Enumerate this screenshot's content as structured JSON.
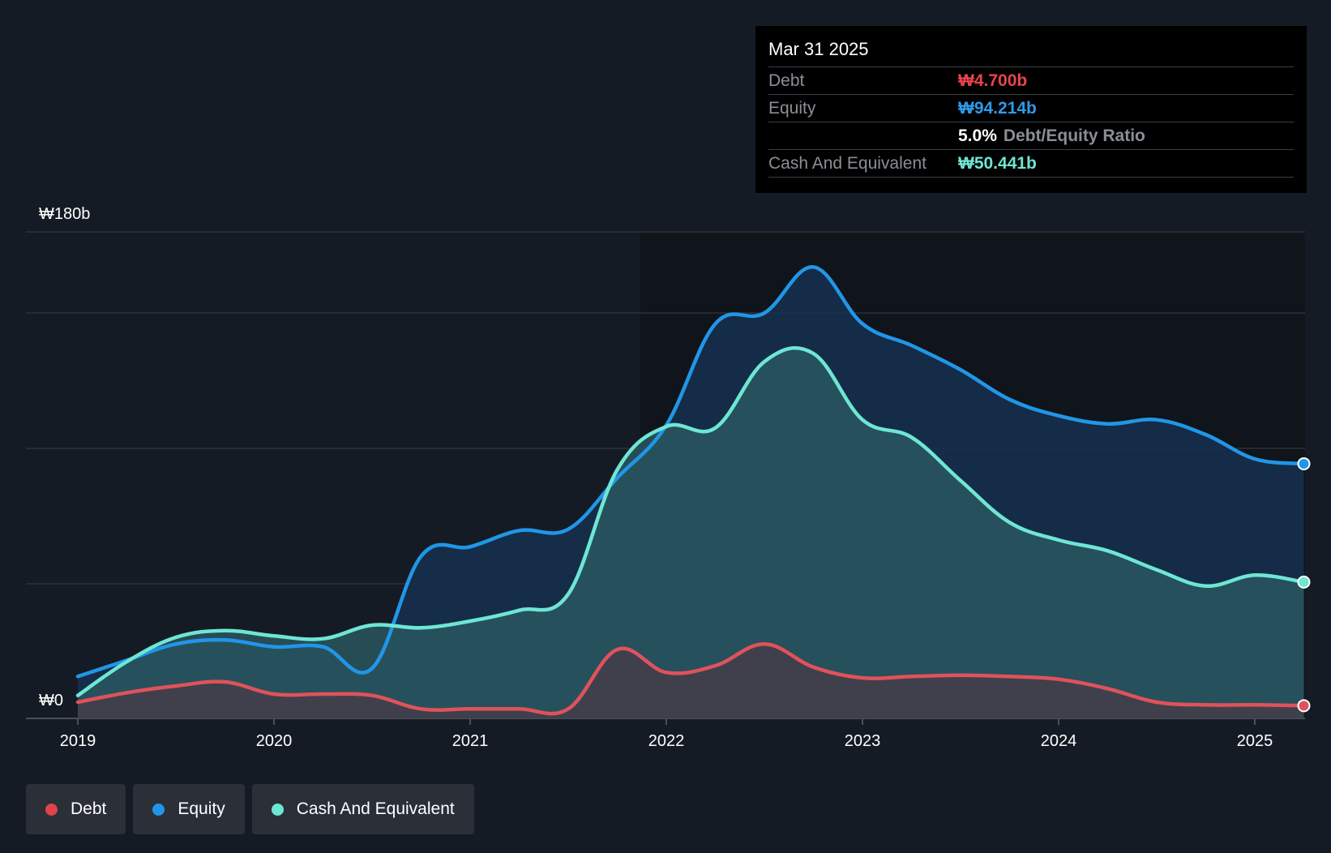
{
  "chart_data": {
    "type": "area",
    "title": "",
    "xlabel": "",
    "ylabel": "",
    "ylim": [
      0,
      180
    ],
    "y_tick_labels": {
      "top": "₩180b",
      "bottom": "₩0"
    },
    "x_tick_labels": [
      "2019",
      "2020",
      "2021",
      "2022",
      "2023",
      "2024",
      "2025"
    ],
    "x_tick_values": [
      2019,
      2020,
      2021,
      2022,
      2023,
      2024,
      2025
    ],
    "xlim": [
      2018.78,
      2025.25
    ],
    "series": [
      {
        "name": "Equity",
        "key": "equity",
        "color": "#2196e8",
        "fill": "#15304f",
        "points": [
          [
            2019.0,
            15.5
          ],
          [
            2019.25,
            21.5
          ],
          [
            2019.5,
            27.5
          ],
          [
            2019.75,
            29.0
          ],
          [
            2020.0,
            26.5
          ],
          [
            2020.25,
            26.5
          ],
          [
            2020.5,
            18.5
          ],
          [
            2020.75,
            60.0
          ],
          [
            2021.0,
            63.5
          ],
          [
            2021.25,
            69.5
          ],
          [
            2021.5,
            70.0
          ],
          [
            2021.75,
            89.0
          ],
          [
            2022.0,
            108.5
          ],
          [
            2022.25,
            146.0
          ],
          [
            2022.5,
            150.0
          ],
          [
            2022.75,
            167.0
          ],
          [
            2023.0,
            146.0
          ],
          [
            2023.25,
            138.0
          ],
          [
            2023.5,
            129.0
          ],
          [
            2023.75,
            118.0
          ],
          [
            2024.0,
            112.0
          ],
          [
            2024.25,
            109.0
          ],
          [
            2024.5,
            110.5
          ],
          [
            2024.75,
            105.0
          ],
          [
            2025.0,
            96.0
          ],
          [
            2025.25,
            94.214
          ]
        ]
      },
      {
        "name": "Cash And Equivalent",
        "key": "cash",
        "color": "#6ee6d4",
        "fill": "#2b5a62",
        "points": [
          [
            2019.0,
            8.5
          ],
          [
            2019.25,
            21.0
          ],
          [
            2019.5,
            30.0
          ],
          [
            2019.75,
            32.5
          ],
          [
            2020.0,
            30.5
          ],
          [
            2020.25,
            29.5
          ],
          [
            2020.5,
            34.5
          ],
          [
            2020.75,
            33.5
          ],
          [
            2021.0,
            36.0
          ],
          [
            2021.25,
            40.0
          ],
          [
            2021.5,
            46.0
          ],
          [
            2021.75,
            92.0
          ],
          [
            2022.0,
            108.0
          ],
          [
            2022.25,
            107.5
          ],
          [
            2022.5,
            132.0
          ],
          [
            2022.75,
            135.0
          ],
          [
            2023.0,
            110.5
          ],
          [
            2023.25,
            104.0
          ],
          [
            2023.5,
            88.0
          ],
          [
            2023.75,
            72.5
          ],
          [
            2024.0,
            66.0
          ],
          [
            2024.25,
            62.0
          ],
          [
            2024.5,
            55.0
          ],
          [
            2024.75,
            49.0
          ],
          [
            2025.0,
            53.0
          ],
          [
            2025.25,
            50.441
          ]
        ]
      },
      {
        "name": "Debt",
        "key": "debt",
        "color": "#e0525b",
        "fill": "#463c48",
        "points": [
          [
            2019.0,
            6.0
          ],
          [
            2019.25,
            9.5
          ],
          [
            2019.5,
            12.0
          ],
          [
            2019.75,
            13.5
          ],
          [
            2020.0,
            9.0
          ],
          [
            2020.25,
            9.0
          ],
          [
            2020.5,
            8.5
          ],
          [
            2020.75,
            3.5
          ],
          [
            2021.0,
            3.5
          ],
          [
            2021.25,
            3.5
          ],
          [
            2021.5,
            3.5
          ],
          [
            2021.75,
            25.5
          ],
          [
            2022.0,
            17.0
          ],
          [
            2022.25,
            19.5
          ],
          [
            2022.5,
            27.5
          ],
          [
            2022.75,
            19.0
          ],
          [
            2023.0,
            15.0
          ],
          [
            2023.25,
            15.5
          ],
          [
            2023.5,
            16.0
          ],
          [
            2023.75,
            15.5
          ],
          [
            2024.0,
            14.5
          ],
          [
            2024.25,
            11.0
          ],
          [
            2024.5,
            6.0
          ],
          [
            2024.75,
            5.0
          ],
          [
            2025.0,
            5.0
          ],
          [
            2025.25,
            4.7
          ]
        ]
      }
    ],
    "legend_position": "bottom-left"
  },
  "tooltip": {
    "date": "Mar 31 2025",
    "debt_label": "Debt",
    "debt_value": "₩4.700b",
    "equity_label": "Equity",
    "equity_value": "₩94.214b",
    "ratio_value": "5.0%",
    "ratio_label": "Debt/Equity Ratio",
    "cash_label": "Cash And Equivalent",
    "cash_value": "₩50.441b"
  },
  "legend": {
    "items": [
      {
        "label": "Debt",
        "color": "#e0434b"
      },
      {
        "label": "Equity",
        "color": "#2196e8"
      },
      {
        "label": "Cash And Equivalent",
        "color": "#6ee6d4"
      }
    ]
  },
  "colors": {
    "debt": "#e8444d",
    "equity": "#2f9ae8",
    "cash": "#6ee6d4"
  }
}
